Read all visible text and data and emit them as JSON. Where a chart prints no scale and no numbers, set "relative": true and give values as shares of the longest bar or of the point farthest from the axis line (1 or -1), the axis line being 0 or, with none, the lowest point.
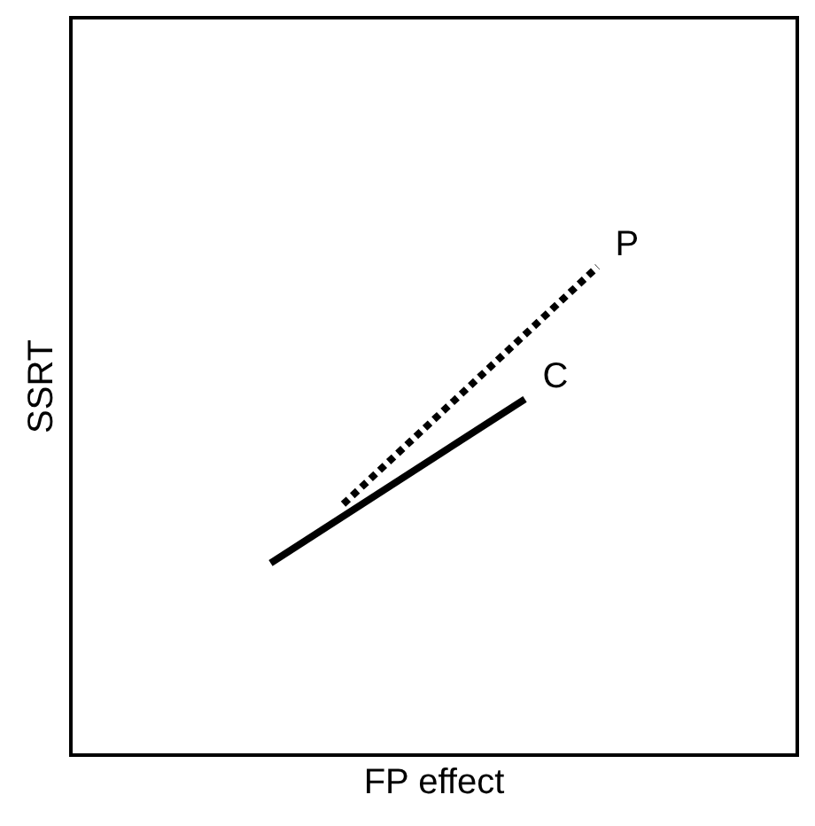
{
  "chart_data": {
    "type": "line",
    "xlabel": "FP effect",
    "ylabel": "SSRT",
    "relative": true,
    "legend": false,
    "grid": false,
    "marker": "none",
    "categories": [
      null,
      null,
      null,
      null,
      null,
      null,
      null,
      null,
      null,
      null,
      null,
      null,
      null,
      null,
      null,
      null,
      null,
      null,
      null,
      null,
      null,
      null,
      null,
      null,
      null,
      null,
      null,
      null,
      null,
      null,
      null,
      null,
      null,
      null,
      null,
      null,
      null,
      null,
      null,
      null,
      null
    ],
    "series": [
      {
        "name": "P",
        "color": "#000000",
        "line_style": "dotted",
        "values": [
          null,
          null,
          null,
          null,
          null,
          null,
          null,
          null,
          null,
          null,
          null,
          null,
          null,
          null,
          null,
          0.514,
          null,
          null,
          null,
          null,
          null,
          null,
          null,
          null,
          null,
          null,
          null,
          null,
          null,
          1,
          null,
          null,
          null,
          null,
          null,
          null,
          null,
          null,
          null,
          null,
          null
        ]
      },
      {
        "name": "C",
        "color": "#000000",
        "line_style": "solid",
        "values": [
          null,
          null,
          null,
          null,
          null,
          null,
          null,
          null,
          null,
          null,
          null,
          0.393,
          null,
          null,
          null,
          null,
          null,
          null,
          null,
          null,
          null,
          null,
          null,
          null,
          null,
          0.729,
          null,
          null,
          null,
          null,
          null,
          null,
          null,
          null,
          null,
          null,
          null,
          null,
          null,
          null,
          null
        ]
      }
    ]
  }
}
